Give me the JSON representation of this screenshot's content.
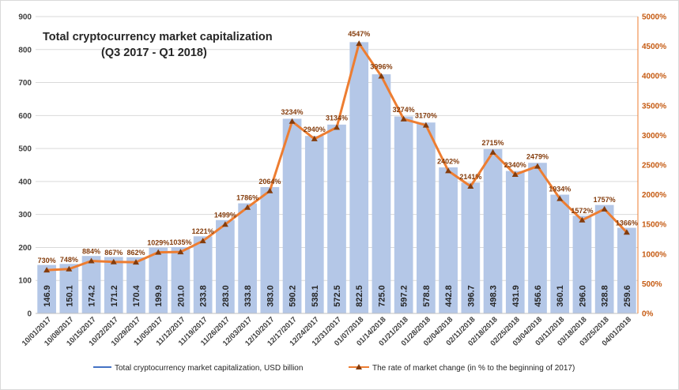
{
  "chart_data": {
    "type": "bar+line",
    "title": "Total cryptocurrency market capitalization",
    "subtitle": "(Q3 2017 - Q1 2018)",
    "categories": [
      "10/01/2017",
      "10/08/2017",
      "10/15/2017",
      "10/22/2017",
      "10/29/2017",
      "11/05/2017",
      "11/12/2017",
      "11/19/2017",
      "11/26/2017",
      "12/03/2017",
      "12/10/2017",
      "12/17/2017",
      "12/24/2017",
      "12/31/2017",
      "01/07/2018",
      "01/14/2018",
      "01/21/2018",
      "01/28/2018",
      "02/04/2018",
      "02/11/2018",
      "02/18/2018",
      "02/25/2018",
      "03/04/2018",
      "03/11/2018",
      "03/18/2018",
      "03/25/2018",
      "04/01/2018"
    ],
    "series": [
      {
        "name": "Total cryptocurrency market capitalization, USD billion",
        "type": "bar",
        "axis": "left",
        "color": "#b4c7e7",
        "values": [
          146.9,
          150.1,
          174.2,
          171.2,
          170.4,
          199.9,
          201.0,
          233.8,
          283.0,
          333.8,
          383.0,
          590.2,
          538.1,
          572.5,
          822.5,
          725.0,
          597.2,
          578.8,
          442.8,
          396.7,
          498.3,
          431.9,
          456.6,
          360.1,
          296.0,
          328.8,
          259.6
        ],
        "labels": [
          "146.9",
          "150.1",
          "174.2",
          "171.2",
          "170.4",
          "199.9",
          "201.0",
          "233.8",
          "283.0",
          "333.8",
          "383.0",
          "590.2",
          "538.1",
          "572.5",
          "822.5",
          "725.0",
          "597.2",
          "578.8",
          "442.8",
          "396.7",
          "498.3",
          "431.9",
          "456.6",
          "360.1",
          "296.0",
          "328.8",
          "259.6"
        ]
      },
      {
        "name": "The rate of market change (in % to the beginning of 2017)",
        "type": "line",
        "axis": "right",
        "color": "#ed7d31",
        "marker_color": "#843c0c",
        "values": [
          730,
          748,
          884,
          867,
          862,
          1029,
          1035,
          1221,
          1499,
          1786,
          2064,
          3234,
          2940,
          3134,
          4547,
          3996,
          3274,
          3170,
          2402,
          2141,
          2715,
          2340,
          2479,
          1934,
          1572,
          1757,
          1366
        ],
        "labels": [
          "730%",
          "748%",
          "884%",
          "867%",
          "862%",
          "1029%",
          "1035%",
          "1221%",
          "1499%",
          "1786%",
          "2064%",
          "3234%",
          "2940%",
          "3134%",
          "4547%",
          "3996%",
          "3274%",
          "3170%",
          "2402%",
          "2141%",
          "2715%",
          "2340%",
          "2479%",
          "1934%",
          "1572%",
          "1757%",
          "1366%"
        ]
      }
    ],
    "y_left": {
      "min": 0,
      "max": 900,
      "step": 100,
      "ticks": [
        "0",
        "100",
        "200",
        "300",
        "400",
        "500",
        "600",
        "700",
        "800",
        "900"
      ]
    },
    "y_right": {
      "min": 0,
      "max": 5000,
      "step": 500,
      "ticks": [
        "0%",
        "500%",
        "1000%",
        "1500%",
        "2000%",
        "2500%",
        "3000%",
        "3500%",
        "4000%",
        "4500%",
        "5000%"
      ]
    },
    "grid": true,
    "legend_position": "bottom"
  }
}
